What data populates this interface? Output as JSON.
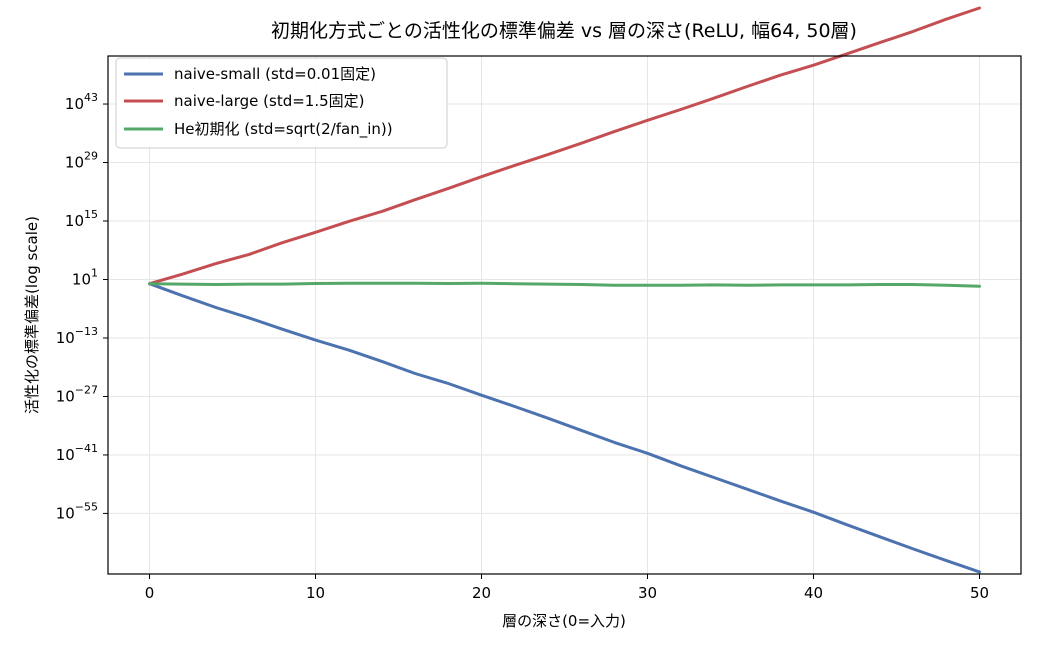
{
  "chart_data": {
    "type": "line",
    "title": "初期化方式ごとの活性化の標準偏差 vs 層の深さ(ReLU, 幅64, 50層)",
    "xlabel": "層の深さ(0=入力)",
    "ylabel": "活性化の標準偏差(log scale)",
    "yscale": "log",
    "xlim": [
      -2.5,
      52.5
    ],
    "ylim_log10": [
      -69.5,
      54.5
    ],
    "grid": true,
    "legend_position": "top-left",
    "x_ticks": [
      0,
      10,
      20,
      30,
      40,
      50
    ],
    "x_tick_labels": [
      "0",
      "10",
      "20",
      "30",
      "40",
      "50"
    ],
    "y_ticks_log10": [
      43,
      29,
      15,
      1,
      -13,
      -27,
      -41,
      -55
    ],
    "y_tick_labels": [
      {
        "base": "10",
        "exp": "43"
      },
      {
        "base": "10",
        "exp": "29"
      },
      {
        "base": "10",
        "exp": "15"
      },
      {
        "base": "10",
        "exp": "1"
      },
      {
        "base": "10",
        "exp": "−13"
      },
      {
        "base": "10",
        "exp": "−27"
      },
      {
        "base": "10",
        "exp": "−41"
      },
      {
        "base": "10",
        "exp": "−55"
      }
    ],
    "series": [
      {
        "name": "naive-small (std=0.01固定)",
        "color": "#4c72b0",
        "x": [
          0,
          2,
          4,
          6,
          8,
          10,
          12,
          14,
          16,
          18,
          20,
          22,
          24,
          26,
          28,
          30,
          32,
          34,
          36,
          38,
          40,
          42,
          44,
          46,
          48,
          50
        ],
        "log10_y": [
          0,
          -2.9,
          -5.7,
          -8.2,
          -10.9,
          -13.5,
          -15.9,
          -18.6,
          -21.5,
          -23.9,
          -26.7,
          -29.4,
          -32.2,
          -35.1,
          -38.0,
          -40.6,
          -43.6,
          -46.4,
          -49.2,
          -52.0,
          -54.7,
          -57.7,
          -60.6,
          -63.5,
          -66.3,
          -69
        ]
      },
      {
        "name": "naive-large (std=1.5固定)",
        "color": "#c44e52",
        "x": [
          0,
          2,
          4,
          6,
          8,
          10,
          12,
          14,
          16,
          18,
          20,
          22,
          24,
          26,
          28,
          30,
          32,
          34,
          36,
          38,
          40,
          42,
          44,
          46,
          48,
          50
        ],
        "log10_y": [
          0,
          2.3,
          4.8,
          7.0,
          9.8,
          12.3,
          14.9,
          17.3,
          20.1,
          22.8,
          25.6,
          28.3,
          30.9,
          33.6,
          36.4,
          39.1,
          41.7,
          44.4,
          47.2,
          49.9,
          52.3,
          55.0,
          57.7,
          60.4,
          63.3,
          66
        ]
      },
      {
        "name": "He初期化 (std=sqrt(2/fan_in))",
        "color": "#55a868",
        "x": [
          0,
          2,
          4,
          6,
          8,
          10,
          12,
          14,
          16,
          18,
          20,
          22,
          24,
          26,
          28,
          30,
          32,
          34,
          36,
          38,
          40,
          42,
          44,
          46,
          48,
          50
        ],
        "log10_y": [
          0,
          -0.1,
          -0.2,
          -0.1,
          -0.1,
          0.05,
          0.1,
          0.1,
          0.1,
          0.05,
          0.1,
          0.0,
          -0.1,
          -0.2,
          -0.4,
          -0.4,
          -0.4,
          -0.3,
          -0.4,
          -0.3,
          -0.3,
          -0.3,
          -0.2,
          -0.2,
          -0.4,
          -0.6
        ]
      }
    ]
  }
}
